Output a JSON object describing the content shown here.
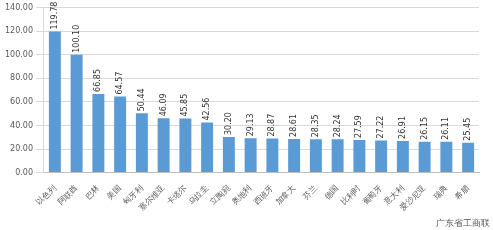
{
  "chart_data": {
    "type": "bar",
    "categories": [
      "以色列",
      "阿联酋",
      "巴林",
      "美国",
      "匈牙利",
      "塞尔维亚",
      "卡塔尔",
      "乌拉圭",
      "立陶宛",
      "奥地利",
      "西班牙",
      "加拿大",
      "芬兰",
      "德国",
      "比利时",
      "葡萄牙",
      "意大利",
      "爱沙尼亚",
      "瑞典",
      "希腊"
    ],
    "values": [
      119.78,
      100.1,
      66.85,
      64.57,
      50.44,
      46.09,
      45.85,
      42.56,
      30.2,
      29.13,
      28.87,
      28.61,
      28.35,
      28.24,
      27.59,
      27.22,
      26.91,
      26.15,
      26.11,
      25.45
    ],
    "value_labels": [
      "119.78",
      "100.10",
      "66.85",
      "64.57",
      "50.44",
      "46.09",
      "45.85",
      "42.56",
      "30.20",
      "29.13",
      "28.87",
      "28.61",
      "28.35",
      "28.24",
      "27.59",
      "27.22",
      "26.91",
      "26.15",
      "26.11",
      "25.45"
    ],
    "color": "#5b9bd5",
    "ylim": [
      0,
      140
    ],
    "yticks": [
      {
        "value": 0,
        "label": "0.00"
      },
      {
        "value": 20,
        "label": "20.00"
      },
      {
        "value": 40,
        "label": "40.00"
      },
      {
        "value": 60,
        "label": "60.00"
      },
      {
        "value": 80,
        "label": "80.00"
      },
      {
        "value": 100,
        "label": "100.00"
      },
      {
        "value": 120,
        "label": "120.00"
      },
      {
        "value": 140,
        "label": "140.00"
      }
    ],
    "grid": true,
    "data_labels": true,
    "annotations": [
      "广东省工商联"
    ]
  }
}
